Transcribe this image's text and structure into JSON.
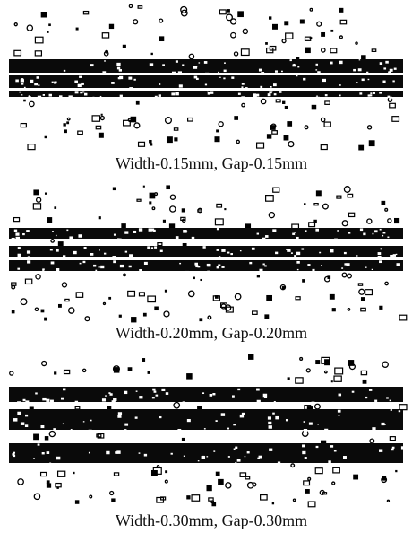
{
  "panels": [
    {
      "caption": "Width-0.15mm, Gap-0.15mm"
    },
    {
      "caption": "Width-0.20mm, Gap-0.20mm"
    },
    {
      "caption": "Width-0.30mm, Gap-0.30mm"
    }
  ]
}
